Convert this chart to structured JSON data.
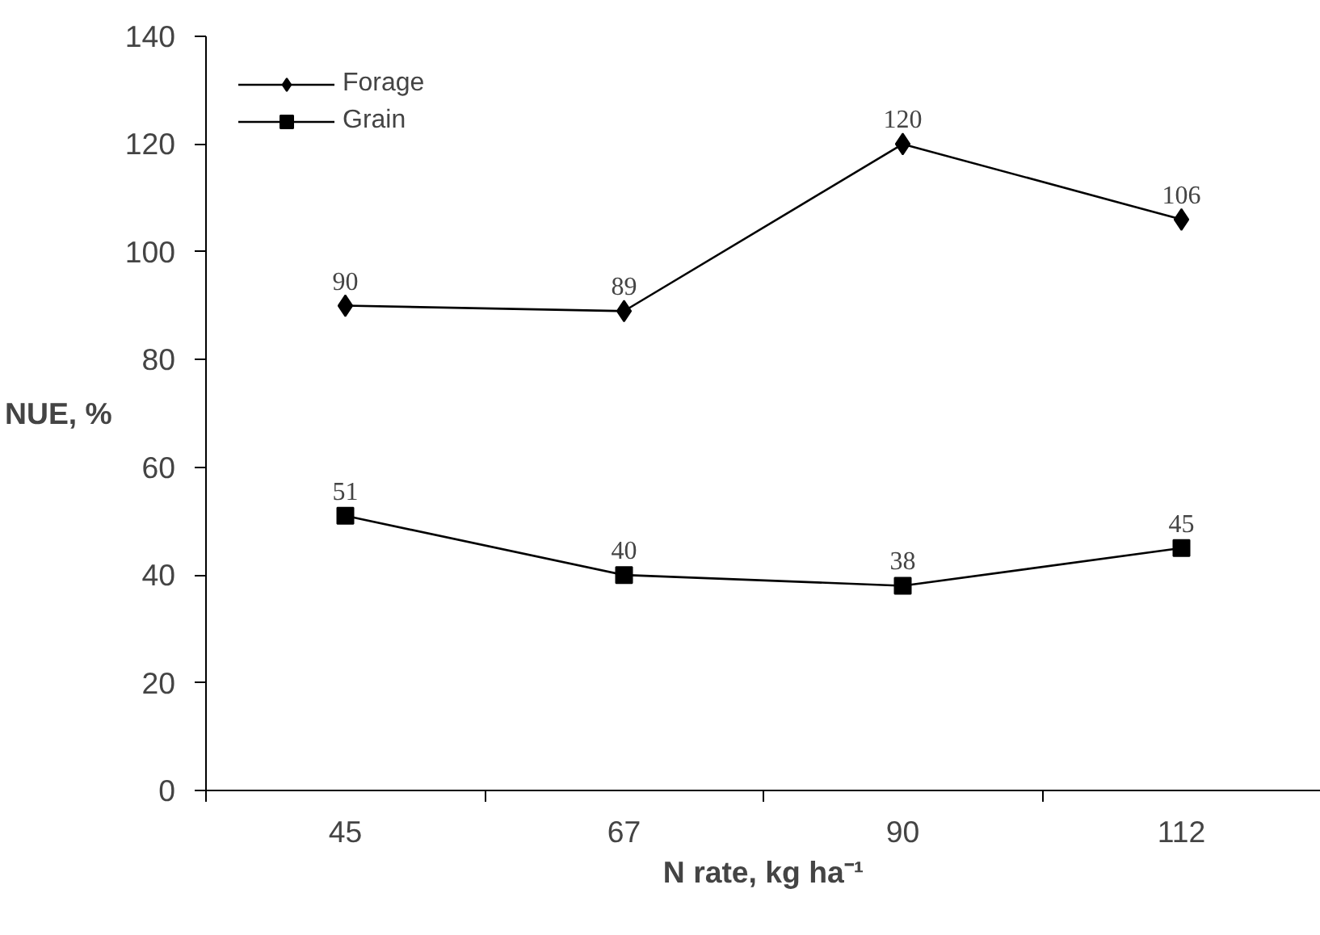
{
  "chart_data": {
    "type": "line",
    "xlabel": "N rate, kg ha⁻¹",
    "ylabel": "NUE, %",
    "categories": [
      "45",
      "67",
      "90",
      "112"
    ],
    "series": [
      {
        "name": "Forage",
        "color": "#000000",
        "values": [
          90,
          89,
          120,
          106
        ],
        "marker": "diamond"
      },
      {
        "name": "Grain",
        "color": "#000000",
        "values": [
          51,
          40,
          38,
          45
        ],
        "marker": "square"
      }
    ],
    "ylim": [
      0,
      140
    ],
    "yticks": [
      0,
      20,
      40,
      60,
      80,
      100,
      120,
      140
    ],
    "grid": false,
    "legend": "top left",
    "data_labels": true,
    "line_style": "solid"
  }
}
